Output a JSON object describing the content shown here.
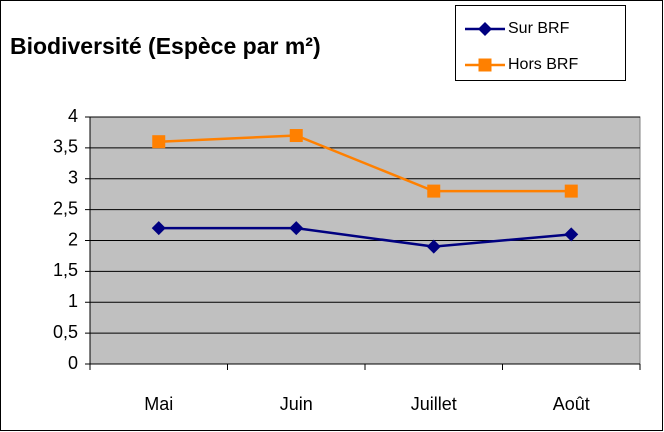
{
  "chart_data": {
    "type": "line",
    "title": "Biodiversité (Espèce par m²)",
    "categories": [
      "Mai",
      "Juin",
      "Juillet",
      "Août"
    ],
    "series": [
      {
        "name": "Sur BRF",
        "color": "#000080",
        "marker": "diamond",
        "values": [
          2.2,
          2.2,
          1.9,
          2.1
        ]
      },
      {
        "name": "Hors BRF",
        "color": "#ff8000",
        "marker": "square",
        "values": [
          3.6,
          3.7,
          2.8,
          2.8
        ]
      }
    ],
    "ylim": [
      0,
      4
    ],
    "yticks": [
      0,
      {
        "value": 0.5,
        "label": "0,5"
      },
      1,
      {
        "value": 1.5,
        "label": "1,5"
      },
      2,
      {
        "value": 2.5,
        "label": "2,5"
      },
      3,
      {
        "value": 3.5,
        "label": "3,5"
      },
      4
    ],
    "grid": true,
    "legend": "top-right",
    "plot_background": "#c0c0c0"
  }
}
